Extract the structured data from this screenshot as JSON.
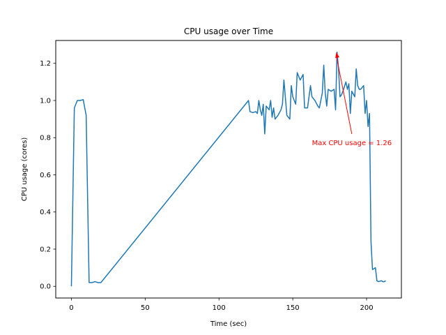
{
  "chart_data": {
    "type": "line",
    "title": "CPU usage over Time",
    "xlabel": "Time (sec)",
    "ylabel": "CPU usage (cores)",
    "xlim": [
      -10.6,
      223.6
    ],
    "ylim": [
      -0.063,
      1.323
    ],
    "xticks": [
      0,
      50,
      100,
      150,
      200
    ],
    "yticks": [
      0.0,
      0.2,
      0.4,
      0.6,
      0.8,
      1.0,
      1.2
    ],
    "ytick_labels": [
      "0.0",
      "0.2",
      "0.4",
      "0.6",
      "0.8",
      "1.0",
      "1.2"
    ],
    "grid": false,
    "line_color": "#1f77b4",
    "series": [
      {
        "x": [
          0,
          2,
          4,
          6,
          8,
          10,
          12,
          14,
          16,
          18,
          20,
          120,
          121,
          123,
          125,
          126,
          127,
          128,
          129,
          130,
          131,
          132,
          134,
          135,
          136,
          137,
          138,
          140,
          142,
          143,
          144,
          146,
          148,
          149,
          150,
          152,
          153,
          155,
          157,
          158,
          160,
          162,
          163,
          165,
          167,
          168,
          170,
          171,
          172,
          173,
          174,
          176,
          178,
          179,
          180,
          181,
          182,
          183,
          184,
          186,
          187,
          188,
          189,
          190,
          192,
          193,
          194,
          195,
          196,
          198,
          199,
          200,
          201,
          202,
          203,
          204,
          206,
          207,
          208,
          210,
          211,
          212,
          213
        ],
        "values": [
          0.0,
          0.96,
          1.0,
          1.0,
          1.005,
          0.92,
          0.02,
          0.02,
          0.025,
          0.02,
          0.02,
          1.0,
          0.94,
          0.935,
          0.94,
          0.93,
          1.0,
          0.95,
          0.92,
          0.98,
          0.82,
          0.97,
          0.95,
          1.0,
          0.91,
          0.96,
          0.9,
          0.92,
          0.95,
          0.98,
          1.11,
          0.92,
          0.9,
          1.08,
          1.02,
          0.98,
          1.15,
          1.11,
          1.14,
          0.96,
          0.96,
          1.08,
          1.02,
          1.0,
          0.97,
          0.96,
          1.04,
          1.19,
          1.04,
          0.97,
          1.06,
          1.05,
          1.06,
          0.95,
          1.26,
          1.17,
          1.02,
          1.03,
          1.05,
          1.1,
          1.06,
          1.09,
          0.93,
          1.05,
          1.02,
          1.17,
          1.08,
          1.06,
          1.06,
          1.08,
          0.93,
          1.0,
          0.86,
          0.93,
          0.24,
          0.09,
          0.1,
          0.03,
          0.025,
          0.03,
          0.025,
          0.025,
          0.03
        ]
      }
    ],
    "annotations": [
      {
        "text": "Max CPU usage = 1.26",
        "color": "#ff0000",
        "point": [
          179.5,
          1.26
        ],
        "text_anchor_point": [
          190,
          0.82
        ]
      }
    ]
  }
}
